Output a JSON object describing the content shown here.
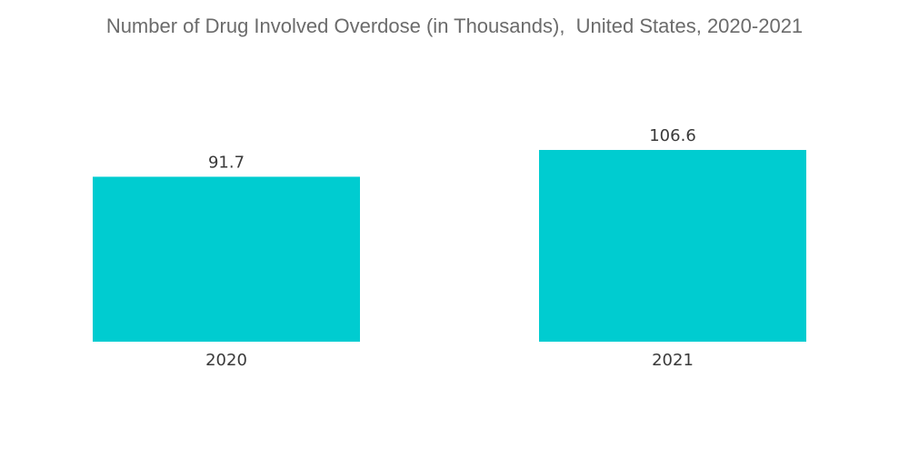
{
  "chart_data": {
    "type": "bar",
    "title": "Number of Drug Involved Overdose (in Thousands),  United States, 2020-2021",
    "categories": [
      "2020",
      "2021"
    ],
    "values": [
      91.7,
      106.6
    ],
    "value_labels": [
      "91.7",
      "106.6"
    ],
    "xlabel": "",
    "ylabel": "",
    "ylim": [
      0,
      106.6
    ],
    "grid": false,
    "legend": "none",
    "bar_color": "#00ccd0"
  }
}
